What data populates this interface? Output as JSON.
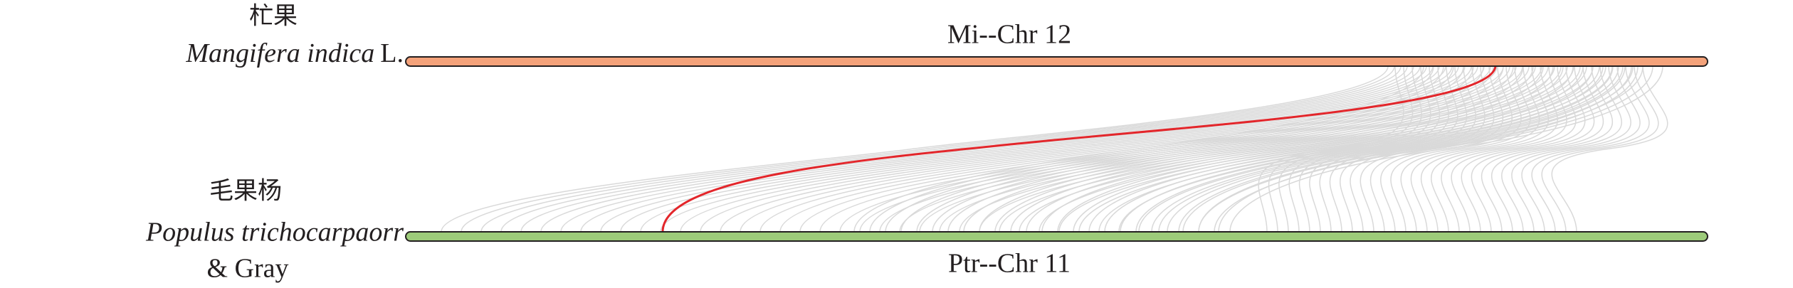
{
  "top": {
    "name_cn": "杧果",
    "name_latin": "Mangifera indica",
    "authority": "L.",
    "chromosome": "Mi--Chr 12"
  },
  "bottom": {
    "name_cn": "毛果杨",
    "name_latin": "Populus trichocarpaorr",
    "authority": "& Gray",
    "chromosome": "Ptr--Chr 11"
  }
}
